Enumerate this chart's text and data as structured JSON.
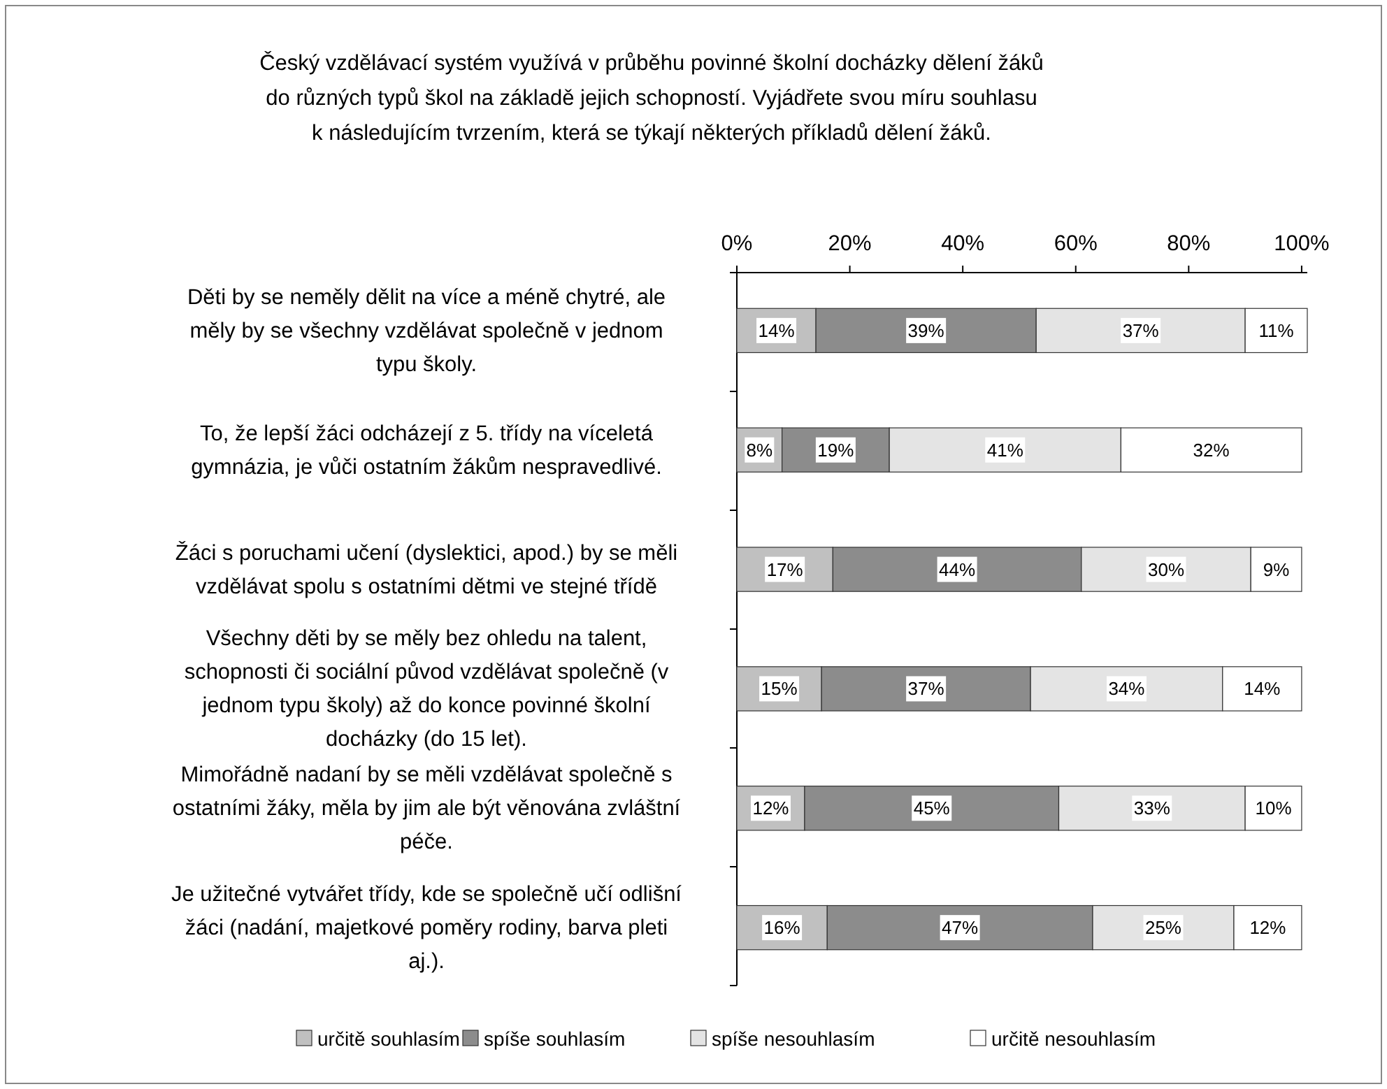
{
  "chart_data": {
    "type": "bar",
    "orientation": "horizontal",
    "stacked": true,
    "title": "Český vzdělávací systém využívá v průběhu povinné školní docházky dělení žáků\ndo   různých typů škol na základě jejich schopností. Vyjádřete svou míru souhlasu\nk následujícím tvrzením, která se týkají některých příkladů dělení žáků.",
    "categories": [
      "Děti by se neměly dělit na více a méně chytré, ale\nměly by se všechny vzdělávat společně v jednom\ntypu školy.",
      "To, že lepší žáci odcházejí z 5. třídy na víceletá\ngymnázia, je vůči ostatním žákům nespravedlivé.",
      "Žáci s poruchami učení (dyslektici, apod.) by se měli\nvzdělávat spolu s ostatními dětmi ve stejné třídě",
      "Všechny děti by se měly bez ohledu na talent,\nschopnosti či sociální původ vzdělávat společně (v\njednom typu školy) až do konce povinné školní\ndocházky (do 15 let).",
      "Mimořádně nadaní by se měli vzdělávat společně s\nostatními žáky, měla by jim ale být věnována zvláštní\npéče.",
      "Je užitečné vytvářet třídy, kde se společně učí odlišní\nžáci (nadání, majetkové poměry rodiny, barva pleti\naj.)."
    ],
    "series": [
      {
        "name": "určitě souhlasím",
        "color": "#c0c0c0",
        "values": [
          14,
          8,
          17,
          15,
          12,
          16
        ],
        "value_labels": [
          "14%",
          "8%",
          "17%",
          "15%",
          "12%",
          "16%"
        ]
      },
      {
        "name": "spíše souhlasím",
        "color": "#8c8c8c",
        "values": [
          39,
          19,
          44,
          37,
          45,
          47
        ],
        "value_labels": [
          "39%",
          "19%",
          "44%",
          "37%",
          "45%",
          "47%"
        ]
      },
      {
        "name": "spíše nesouhlasím",
        "color": "#e4e4e4",
        "values": [
          37,
          41,
          30,
          34,
          33,
          25
        ],
        "value_labels": [
          "37%",
          "41%",
          "30%",
          "34%",
          "33%",
          "25%"
        ]
      },
      {
        "name": "určitě nesouhlasím",
        "color": "#ffffff",
        "values": [
          11,
          32,
          9,
          14,
          10,
          12
        ],
        "value_labels": [
          "11%",
          "32%",
          "9%",
          "14%",
          "10%",
          "12%"
        ]
      }
    ],
    "xlim": [
      0,
      101
    ],
    "xticks": [
      {
        "value": 0,
        "label": "0%"
      },
      {
        "value": 20,
        "label": "20%"
      },
      {
        "value": 40,
        "label": "40%"
      },
      {
        "value": 60,
        "label": "60%"
      },
      {
        "value": 80,
        "label": "80%"
      },
      {
        "value": 100,
        "label": "100%"
      }
    ],
    "legend": "bottom",
    "grid": false
  }
}
